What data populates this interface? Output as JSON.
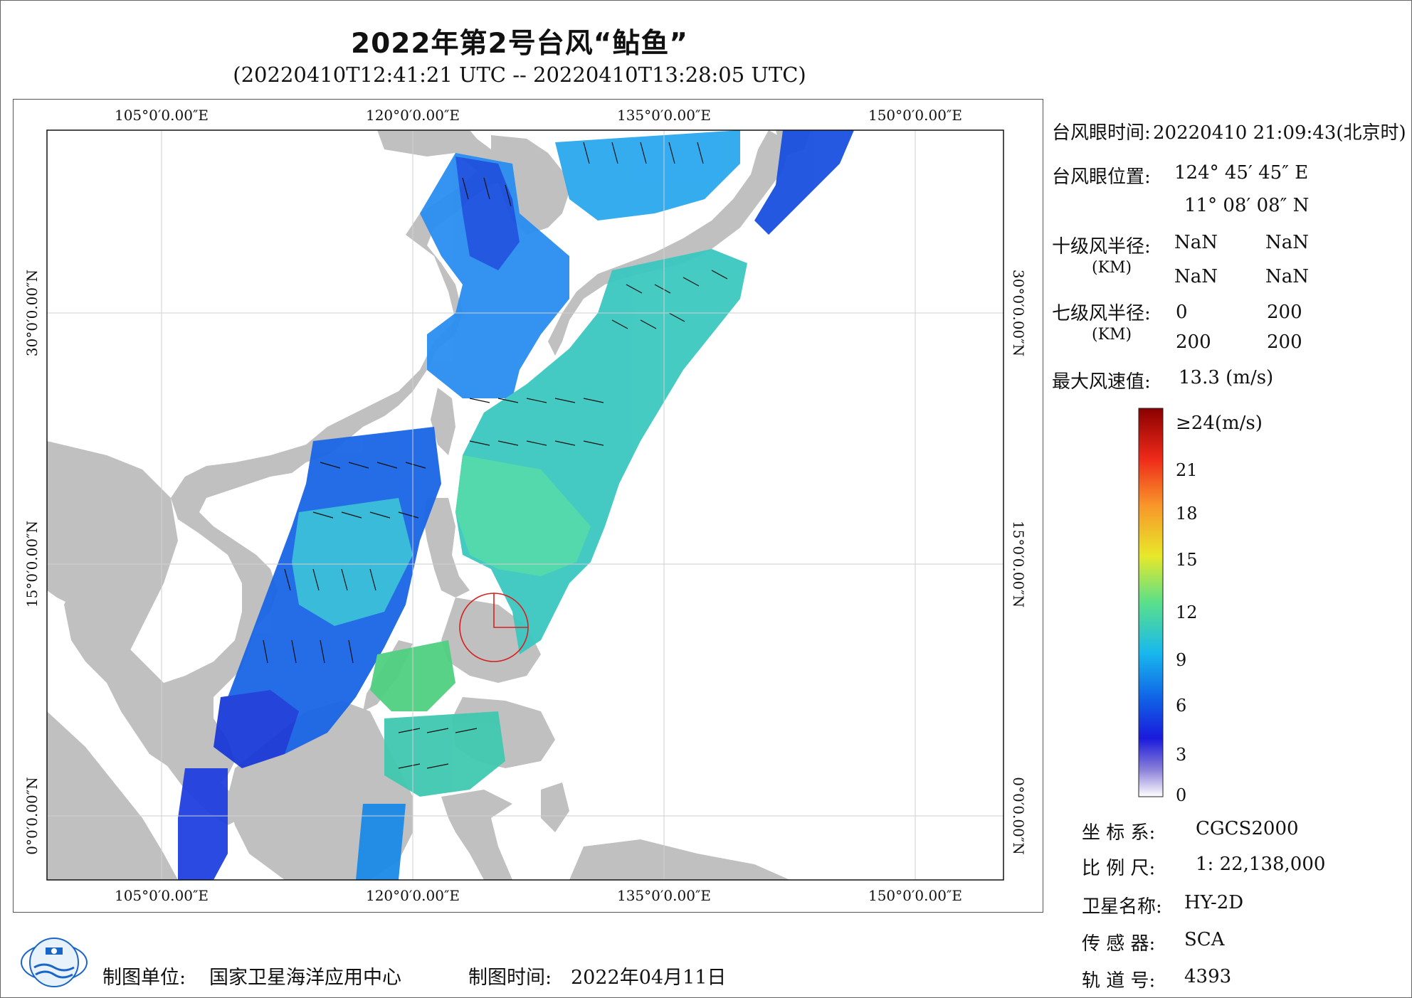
{
  "title": "2022年第2号台风“鲇鱼”",
  "subtitle": "(20220410T12:41:21 UTC -- 20220410T13:28:05 UTC)",
  "map": {
    "lon_labels": [
      "105°0′0.00″E",
      "120°0′0.00″E",
      "135°0′0.00″E",
      "150°0′0.00″E"
    ],
    "lat_labels": [
      "30°0′0.00″N",
      "15°0′0.00″N",
      "0°0′0.00″N"
    ],
    "colors": {
      "land": "#c0c0c0",
      "sea": "#ffffff",
      "grid": "#cfcfcf",
      "eye_circle": "#d62020"
    }
  },
  "info": {
    "eye_time_label": "台风眼时间:",
    "eye_time_value": "20220410 21:09:43(北京时)",
    "eye_pos_label": "台风眼位置:",
    "eye_lon": "124° 45′ 45″ E",
    "eye_lat": "11° 08′ 08″ N",
    "r10_label": "十级风半径:",
    "r10_unit": "(KM)",
    "r10_values": [
      "NaN",
      "NaN",
      "NaN",
      "NaN"
    ],
    "r7_label": "七级风半径:",
    "r7_unit": "(KM)",
    "r7_values": [
      "0",
      "200",
      "200",
      "200"
    ],
    "max_wind_label": "最大风速值:",
    "max_wind_value": "13.3 (m/s)"
  },
  "colorbar": {
    "top_label": "≥24(m/s)",
    "ticks": [
      "21",
      "18",
      "15",
      "12",
      "9",
      "6",
      "3",
      "0"
    ]
  },
  "meta": {
    "crs_label": "坐 标 系:",
    "crs_value": "CGCS2000",
    "scale_label": "比 例 尺:",
    "scale_value": "1: 22,138,000",
    "sat_label": "卫星名称:",
    "sat_value": "HY-2D",
    "sensor_label": "传 感 器:",
    "sensor_value": "SCA",
    "orbit_label": "轨 道 号:",
    "orbit_value": "4393"
  },
  "footer": {
    "unit_label": "制图单位:",
    "unit_value": "国家卫星海洋应用中心",
    "time_label": "制图时间:",
    "time_value": "2022年04月11日"
  }
}
